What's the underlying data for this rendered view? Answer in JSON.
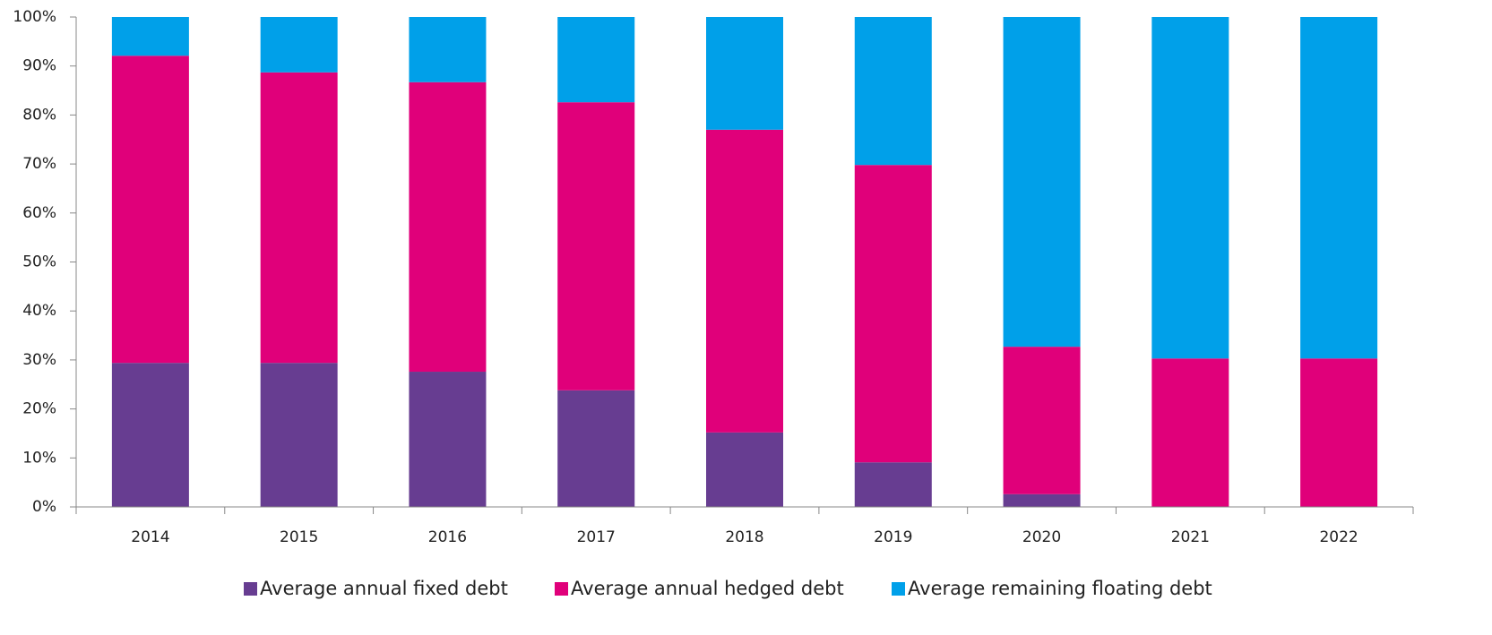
{
  "chart_data": {
    "type": "stacked_bar",
    "categories": [
      "2014",
      "2015",
      "2016",
      "2017",
      "2018",
      "2019",
      "2020",
      "2021",
      "2022"
    ],
    "series": [
      {
        "name": "Average annual fixed debt",
        "color": "#673d91",
        "values": [
          29.4,
          29.4,
          27.6,
          23.8,
          15.2,
          9.1,
          2.6,
          0,
          0
        ]
      },
      {
        "name": "Average annual hedged debt",
        "color": "#e0007a",
        "values": [
          62.7,
          59.3,
          59.1,
          58.8,
          61.8,
          60.7,
          30.1,
          30.3,
          30.3
        ]
      },
      {
        "name": "Average remaining floating debt",
        "color": "#00a0e9",
        "values": [
          7.9,
          11.3,
          13.3,
          17.4,
          23.0,
          30.2,
          67.3,
          69.7,
          69.7
        ]
      }
    ],
    "ylim": [
      0,
      100
    ],
    "yticks": [
      {
        "value": 0,
        "label": "0%"
      },
      {
        "value": 10,
        "label": "10%"
      },
      {
        "value": 20,
        "label": "20%"
      },
      {
        "value": 30,
        "label": "30%"
      },
      {
        "value": 40,
        "label": "40%"
      },
      {
        "value": 50,
        "label": "50%"
      },
      {
        "value": 60,
        "label": "60%"
      },
      {
        "value": 70,
        "label": "70%"
      },
      {
        "value": 80,
        "label": "80%"
      },
      {
        "value": 90,
        "label": "90%"
      },
      {
        "value": 100,
        "label": "100%"
      }
    ],
    "legend": "bottom"
  }
}
